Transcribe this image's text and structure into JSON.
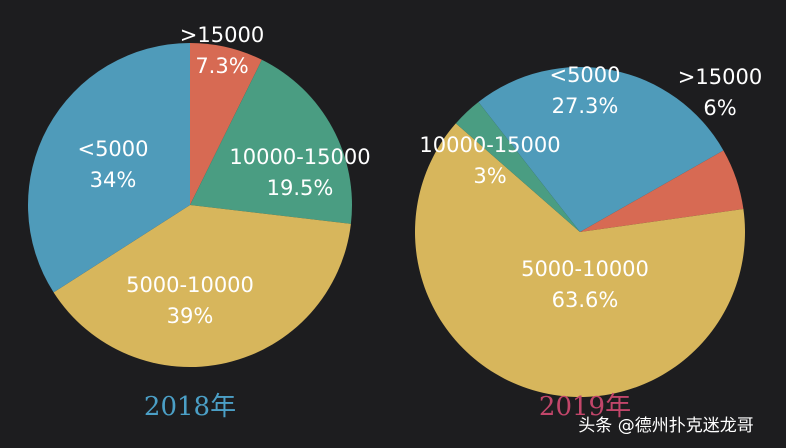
{
  "chart_data": [
    {
      "type": "pie",
      "title": "2018年",
      "title_color": "#4b9fc6",
      "categories": [
        ">15000",
        "10000-15000",
        "5000-10000",
        "<5000"
      ],
      "values": [
        7.3,
        19.5,
        39,
        34
      ],
      "value_labels": [
        "7.3%",
        "19.5%",
        "39%",
        "34%"
      ],
      "colors": [
        "#d76a53",
        "#4a9d82",
        "#d7b65c",
        "#4f9bba"
      ]
    },
    {
      "type": "pie",
      "title": "2019年",
      "title_color": "#c2466a",
      "categories": [
        "<5000",
        ">15000",
        "5000-10000",
        "10000-15000"
      ],
      "values": [
        27.3,
        6,
        63.6,
        3
      ],
      "value_labels": [
        "27.3%",
        "6%",
        "63.6%",
        "3%"
      ],
      "colors": [
        "#4f9bba",
        "#d76a53",
        "#d7b65c",
        "#4a9d82"
      ]
    }
  ],
  "watermark": "头条 @德州扑克迷龙哥"
}
